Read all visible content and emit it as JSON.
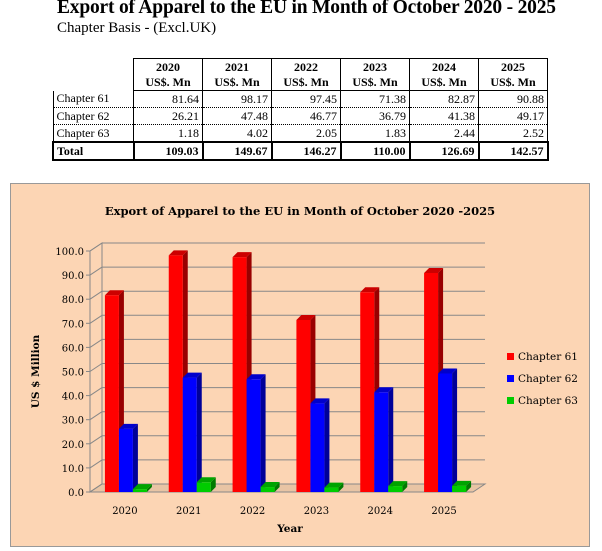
{
  "header": {
    "title": "Export of Apparel to the EU in Month of October 2020 - 2025",
    "subtitle": "Chapter Basis - (Excl.UK)"
  },
  "table": {
    "columns": [
      {
        "year": "2020",
        "unit": "US$. Mn"
      },
      {
        "year": "2021",
        "unit": "US$. Mn"
      },
      {
        "year": "2022",
        "unit": "US$. Mn"
      },
      {
        "year": "2023",
        "unit": "US$. Mn"
      },
      {
        "year": "2024",
        "unit": "US$. Mn"
      },
      {
        "year": "2025",
        "unit": "US$. Mn"
      }
    ],
    "rows": [
      {
        "label": "Chapter 61",
        "values": [
          "81.64",
          "98.17",
          "97.45",
          "71.38",
          "82.87",
          "90.88"
        ]
      },
      {
        "label": "Chapter 62",
        "values": [
          "26.21",
          "47.48",
          "46.77",
          "36.79",
          "41.38",
          "49.17"
        ]
      },
      {
        "label": "Chapter 63",
        "values": [
          "1.18",
          "4.02",
          "2.05",
          "1.83",
          "2.44",
          "2.52"
        ]
      }
    ],
    "total": {
      "label": "Total",
      "values": [
        "109.03",
        "149.67",
        "146.27",
        "110.00",
        "126.69",
        "142.57"
      ]
    }
  },
  "chart_data": {
    "type": "bar",
    "title": "Export of Apparel to the EU in Month of October 2020 -2025",
    "xlabel": "Year",
    "ylabel": "US $ Million",
    "ylim": [
      0,
      100
    ],
    "yticks": [
      "0.0",
      "10.0",
      "20.0",
      "30.0",
      "40.0",
      "50.0",
      "60.0",
      "70.0",
      "80.0",
      "90.0",
      "100.0"
    ],
    "categories": [
      "2020",
      "2021",
      "2022",
      "2023",
      "2024",
      "2025"
    ],
    "series": [
      {
        "name": "Chapter 61",
        "color": "#ff0000",
        "values": [
          81.64,
          98.17,
          97.45,
          71.38,
          82.87,
          90.88
        ]
      },
      {
        "name": "Chapter 62",
        "color": "#0000ff",
        "values": [
          26.21,
          47.48,
          46.77,
          36.79,
          41.38,
          49.17
        ]
      },
      {
        "name": "Chapter 63",
        "color": "#00cc00",
        "values": [
          1.18,
          4.02,
          2.05,
          1.83,
          2.44,
          2.52
        ]
      }
    ],
    "grid": true,
    "legend": "right",
    "style": "3d"
  }
}
